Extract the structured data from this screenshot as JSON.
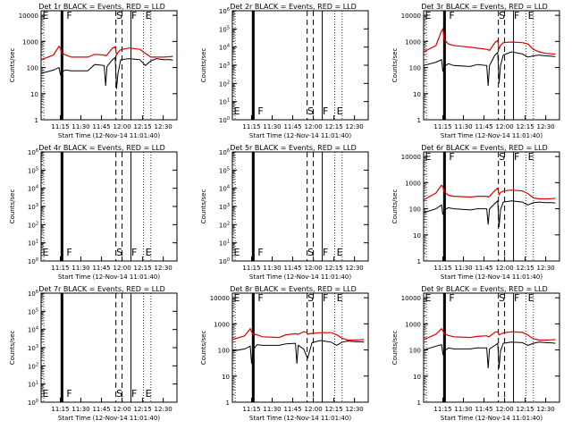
{
  "colors": {
    "events": "#000000",
    "lld": "#dd0000",
    "axes": "#000000",
    "background": "#ffffff"
  },
  "chart_data": [
    {
      "type": "line",
      "title": "Det 1r BLACK = Events, RED = LLD",
      "xlabel": "Start Time (12-Nov-14 11:01:40)",
      "ylabel": "Counts/sec",
      "ylog": true,
      "xlim": [
        "11:01",
        "12:40"
      ],
      "ylim": [
        1,
        15000
      ],
      "xticks": [
        "11:15",
        "11:30",
        "11:45",
        "12:00",
        "12:15",
        "12:30"
      ],
      "yticks": [
        "1",
        "10",
        "100",
        "1000",
        "10000"
      ],
      "markers": [
        "E",
        "F",
        "S",
        "F",
        "E"
      ],
      "has_data": true,
      "series": [
        {
          "name": "Events",
          "color": "#000000",
          "x": [
            "11:01",
            "11:10",
            "11:14",
            "11:15",
            "11:16",
            "11:19",
            "11:23",
            "11:35",
            "11:40",
            "11:47",
            "11:48",
            "11:49",
            "11:53",
            "11:55",
            "11:56",
            "11:57",
            "11:59",
            "12:05",
            "12:13",
            "12:17",
            "12:21",
            "12:25",
            "12:30",
            "12:35",
            "12:37"
          ],
          "y": [
            60,
            80,
            100,
            55,
            70,
            80,
            75,
            75,
            130,
            120,
            20,
            110,
            200,
            240,
            15,
            60,
            200,
            220,
            200,
            120,
            180,
            220,
            200,
            200,
            190
          ]
        },
        {
          "name": "LLD",
          "color": "#dd0000",
          "x": [
            "11:01",
            "11:10",
            "11:14",
            "11:15",
            "11:16",
            "11:19",
            "11:23",
            "11:35",
            "11:40",
            "11:47",
            "11:48",
            "11:49",
            "11:53",
            "11:55",
            "11:56",
            "11:57",
            "11:59",
            "12:05",
            "12:13",
            "12:17",
            "12:21",
            "12:25",
            "12:30",
            "12:35",
            "12:37"
          ],
          "y": [
            200,
            300,
            650,
            560,
            350,
            300,
            250,
            250,
            320,
            300,
            280,
            300,
            550,
            620,
            300,
            380,
            480,
            560,
            500,
            350,
            250,
            250,
            250,
            260,
            270
          ]
        }
      ]
    },
    {
      "type": "line",
      "title": "Det 2r BLACK = Events, RED = LLD",
      "xlabel": "Start Time (12-Nov-14 11:01:40)",
      "ylabel": "Counts/sec",
      "ylog": true,
      "xlim": [
        "11:01",
        "12:40"
      ],
      "ylim": [
        1,
        1000000
      ],
      "xticks": [
        "11:15",
        "11:30",
        "11:45",
        "12:00",
        "12:15",
        "12:30"
      ],
      "yticks": [
        "10^0",
        "10^1",
        "10^2",
        "10^3",
        "10^4",
        "10^5",
        "10^6"
      ],
      "markers": [
        "E",
        "F",
        "S",
        "F",
        "E"
      ],
      "has_data": false,
      "series": []
    },
    {
      "type": "line",
      "title": "Det 3r BLACK = Events, RED = LLD",
      "xlabel": "Start Time (12-Nov-14 11:01:40)",
      "ylabel": "Counts/sec",
      "ylog": true,
      "xlim": [
        "11:01",
        "12:40"
      ],
      "ylim": [
        1,
        15000
      ],
      "xticks": [
        "11:15",
        "11:30",
        "11:45",
        "12:00",
        "12:15",
        "12:30"
      ],
      "yticks": [
        "1",
        "10",
        "100",
        "1000",
        "10000"
      ],
      "markers": [
        "E",
        "F",
        "S",
        "F",
        "E"
      ],
      "has_data": true,
      "series": [
        {
          "name": "Events",
          "color": "#000000",
          "x": [
            "11:01",
            "11:10",
            "11:14",
            "11:15",
            "11:16",
            "11:19",
            "11:23",
            "11:35",
            "11:40",
            "11:47",
            "11:48",
            "11:49",
            "11:53",
            "11:55",
            "11:56",
            "11:57",
            "11:59",
            "12:05",
            "12:13",
            "12:17",
            "12:21",
            "12:25",
            "12:30",
            "12:35",
            "12:37"
          ],
          "y": [
            120,
            160,
            200,
            70,
            110,
            140,
            120,
            110,
            130,
            120,
            20,
            120,
            300,
            380,
            25,
            120,
            300,
            400,
            330,
            250,
            280,
            300,
            280,
            270,
            260
          ]
        },
        {
          "name": "LLD",
          "color": "#dd0000",
          "x": [
            "11:01",
            "11:10",
            "11:14",
            "11:15",
            "11:16",
            "11:19",
            "11:23",
            "11:35",
            "11:40",
            "11:47",
            "11:48",
            "11:49",
            "11:53",
            "11:55",
            "11:56",
            "11:57",
            "11:59",
            "12:05",
            "12:13",
            "12:17",
            "12:21",
            "12:25",
            "12:30",
            "12:35",
            "12:37"
          ],
          "y": [
            400,
            700,
            2500,
            3000,
            1200,
            800,
            700,
            600,
            550,
            500,
            480,
            450,
            900,
            1100,
            500,
            700,
            900,
            950,
            900,
            800,
            500,
            400,
            350,
            330,
            330
          ]
        }
      ]
    },
    {
      "type": "line",
      "title": "Det 4r BLACK = Events, RED = LLD",
      "xlabel": "Start Time (12-Nov-14 11:01:40)",
      "ylabel": "Counts/sec",
      "ylog": true,
      "xlim": [
        "11:01",
        "12:40"
      ],
      "ylim": [
        1,
        1000000
      ],
      "xticks": [
        "11:15",
        "11:30",
        "11:45",
        "12:00",
        "12:15",
        "12:30"
      ],
      "yticks": [
        "10^0",
        "10^1",
        "10^2",
        "10^3",
        "10^4",
        "10^5",
        "10^6"
      ],
      "markers": [
        "E",
        "F",
        "S",
        "F",
        "E"
      ],
      "has_data": false,
      "series": []
    },
    {
      "type": "line",
      "title": "Det 5r BLACK = Events, RED = LLD",
      "xlabel": "Start Time (12-Nov-14 11:01:40)",
      "ylabel": "Counts/sec",
      "ylog": true,
      "xlim": [
        "11:01",
        "12:40"
      ],
      "ylim": [
        1,
        1000000
      ],
      "xticks": [
        "11:15",
        "11:30",
        "11:45",
        "12:00",
        "12:15",
        "12:30"
      ],
      "yticks": [
        "10^0",
        "10^1",
        "10^2",
        "10^3",
        "10^4",
        "10^5",
        "10^6"
      ],
      "markers": [
        "E",
        "F",
        "S",
        "F",
        "E"
      ],
      "has_data": false,
      "series": []
    },
    {
      "type": "line",
      "title": "Det 6r BLACK = Events, RED = LLD",
      "xlabel": "Start Time (12-Nov-14 11:01:40)",
      "ylabel": "Counts/sec",
      "ylog": true,
      "xlim": [
        "11:01",
        "12:40"
      ],
      "ylim": [
        1,
        15000
      ],
      "xticks": [
        "11:15",
        "11:30",
        "11:45",
        "12:00",
        "12:15",
        "12:30"
      ],
      "yticks": [
        "1",
        "10",
        "100",
        "1000",
        "10000"
      ],
      "markers": [
        "E",
        "F",
        "S",
        "F",
        "E"
      ],
      "has_data": true,
      "series": [
        {
          "name": "Events",
          "color": "#000000",
          "x": [
            "11:01",
            "11:10",
            "11:14",
            "11:15",
            "11:16",
            "11:19",
            "11:23",
            "11:35",
            "11:40",
            "11:47",
            "11:48",
            "11:49",
            "11:53",
            "11:55",
            "11:56",
            "11:57",
            "11:59",
            "12:05",
            "12:13",
            "12:17",
            "12:21",
            "12:25",
            "12:30",
            "12:35",
            "12:37"
          ],
          "y": [
            70,
            100,
            140,
            60,
            90,
            110,
            100,
            90,
            100,
            100,
            25,
            100,
            160,
            200,
            20,
            90,
            180,
            200,
            180,
            140,
            170,
            180,
            170,
            170,
            165
          ]
        },
        {
          "name": "LLD",
          "color": "#dd0000",
          "x": [
            "11:01",
            "11:10",
            "11:14",
            "11:15",
            "11:16",
            "11:19",
            "11:23",
            "11:35",
            "11:40",
            "11:47",
            "11:48",
            "11:49",
            "11:53",
            "11:55",
            "11:56",
            "11:57",
            "11:59",
            "12:05",
            "12:13",
            "12:17",
            "12:21",
            "12:25",
            "12:30",
            "12:35",
            "12:37"
          ],
          "y": [
            220,
            400,
            800,
            700,
            450,
            330,
            300,
            280,
            300,
            300,
            280,
            300,
            500,
            620,
            350,
            420,
            480,
            520,
            480,
            380,
            260,
            240,
            240,
            245,
            250
          ]
        }
      ]
    },
    {
      "type": "line",
      "title": "Det 7r BLACK = Events, RED = LLD",
      "xlabel": "Start Time (12-Nov-14 11:01:40)",
      "ylabel": "Counts/sec",
      "ylog": true,
      "xlim": [
        "11:01",
        "12:40"
      ],
      "ylim": [
        1,
        1000000
      ],
      "xticks": [
        "11:15",
        "11:30",
        "11:45",
        "12:00",
        "12:15",
        "12:30"
      ],
      "yticks": [
        "10^0",
        "10^1",
        "10^2",
        "10^3",
        "10^4",
        "10^5",
        "10^6"
      ],
      "markers": [
        "E",
        "F",
        "S",
        "F",
        "E"
      ],
      "has_data": false,
      "series": []
    },
    {
      "type": "line",
      "title": "Det 8r BLACK = Events, RED = LLD",
      "xlabel": "Start Time (12-Nov-14 11:01:40)",
      "ylabel": "Counts/sec",
      "ylog": true,
      "xlim": [
        "11:01",
        "12:40"
      ],
      "ylim": [
        1,
        15000
      ],
      "xticks": [
        "11:15",
        "11:30",
        "11:45",
        "12:00",
        "12:15",
        "12:30"
      ],
      "yticks": [
        "1",
        "10",
        "100",
        "1000",
        "10000"
      ],
      "markers": [
        "E",
        "F",
        "S",
        "F",
        "E"
      ],
      "has_data": true,
      "series": [
        {
          "name": "Events",
          "color": "#000000",
          "x": [
            "11:01",
            "11:10",
            "11:14",
            "11:15",
            "11:16",
            "11:19",
            "11:23",
            "11:35",
            "11:40",
            "11:47",
            "11:48",
            "11:49",
            "11:53",
            "11:55",
            "11:56",
            "11:57",
            "11:59",
            "12:05",
            "12:13",
            "12:17",
            "12:21",
            "12:25",
            "12:30",
            "12:35",
            "12:37"
          ],
          "y": [
            90,
            110,
            140,
            30,
            100,
            160,
            150,
            150,
            170,
            180,
            30,
            150,
            110,
            60,
            50,
            80,
            190,
            230,
            200,
            150,
            200,
            220,
            210,
            205,
            200
          ]
        },
        {
          "name": "LLD",
          "color": "#dd0000",
          "x": [
            "11:01",
            "11:10",
            "11:14",
            "11:15",
            "11:16",
            "11:19",
            "11:23",
            "11:35",
            "11:40",
            "11:47",
            "11:48",
            "11:49",
            "11:53",
            "11:55",
            "11:56",
            "11:57",
            "11:59",
            "12:05",
            "12:13",
            "12:17",
            "12:21",
            "12:25",
            "12:30",
            "12:35",
            "12:37"
          ],
          "y": [
            250,
            350,
            650,
            500,
            400,
            380,
            320,
            300,
            380,
            420,
            400,
            400,
            500,
            480,
            400,
            420,
            430,
            460,
            460,
            380,
            280,
            240,
            240,
            245,
            250
          ]
        }
      ]
    },
    {
      "type": "line",
      "title": "Det 9r BLACK = Events, RED = LLD",
      "xlabel": "Start Time (12-Nov-14 11:01:40)",
      "ylabel": "Counts/sec",
      "ylog": true,
      "xlim": [
        "11:01",
        "12:40"
      ],
      "ylim": [
        1,
        15000
      ],
      "xticks": [
        "11:15",
        "11:30",
        "11:45",
        "12:00",
        "12:15",
        "12:30"
      ],
      "yticks": [
        "1",
        "10",
        "100",
        "1000",
        "10000"
      ],
      "markers": [
        "E",
        "F",
        "S",
        "F",
        "E"
      ],
      "has_data": true,
      "series": [
        {
          "name": "Events",
          "color": "#000000",
          "x": [
            "11:01",
            "11:10",
            "11:14",
            "11:15",
            "11:16",
            "11:19",
            "11:23",
            "11:35",
            "11:40",
            "11:47",
            "11:48",
            "11:49",
            "11:53",
            "11:55",
            "11:56",
            "11:57",
            "11:59",
            "12:05",
            "12:13",
            "12:17",
            "12:21",
            "12:25",
            "12:30",
            "12:35",
            "12:37"
          ],
          "y": [
            100,
            140,
            160,
            70,
            90,
            120,
            110,
            110,
            120,
            120,
            20,
            110,
            150,
            180,
            20,
            90,
            180,
            200,
            190,
            150,
            180,
            200,
            190,
            185,
            180
          ]
        },
        {
          "name": "LLD",
          "color": "#dd0000",
          "x": [
            "11:01",
            "11:10",
            "11:14",
            "11:15",
            "11:16",
            "11:19",
            "11:23",
            "11:35",
            "11:40",
            "11:47",
            "11:48",
            "11:49",
            "11:53",
            "11:55",
            "11:56",
            "11:57",
            "11:59",
            "12:05",
            "12:13",
            "12:17",
            "12:21",
            "12:25",
            "12:30",
            "12:35",
            "12:37"
          ],
          "y": [
            250,
            400,
            650,
            550,
            420,
            360,
            320,
            300,
            330,
            350,
            320,
            330,
            480,
            500,
            380,
            400,
            450,
            500,
            470,
            370,
            270,
            240,
            240,
            245,
            250
          ]
        }
      ]
    }
  ]
}
